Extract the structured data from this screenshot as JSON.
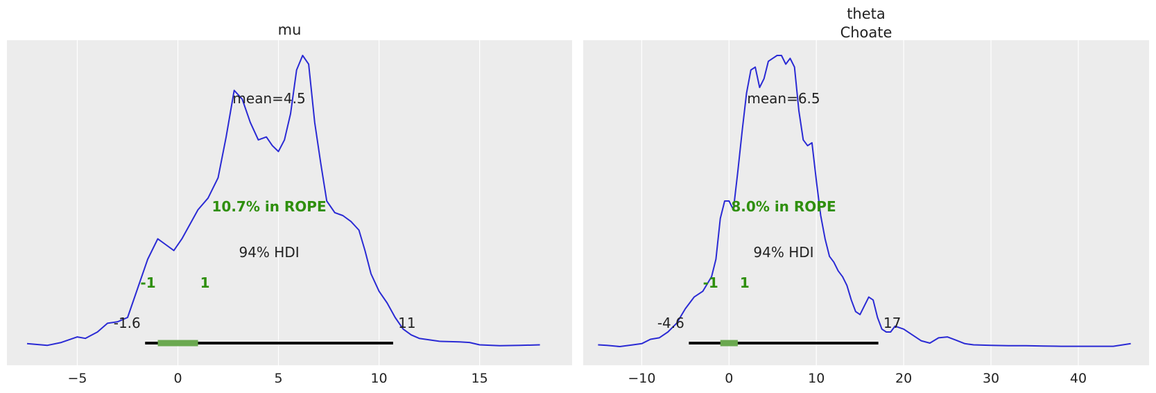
{
  "chart_data": [
    {
      "type": "area",
      "title": "mu",
      "xlabel": "",
      "ylabel": "",
      "xlim": [
        -8.5,
        19.6
      ],
      "xticks": [
        -5,
        0,
        5,
        10,
        15
      ],
      "xtick_labels": [
        "−5",
        "0",
        "5",
        "10",
        "15"
      ],
      "grid": true,
      "kde": {
        "x": [
          -7.5,
          -6.5,
          -5.8,
          -5.0,
          -4.6,
          -4.0,
          -3.5,
          -3.0,
          -2.5,
          -2.0,
          -1.5,
          -1.0,
          -0.6,
          -0.2,
          0.2,
          0.6,
          1.0,
          1.5,
          2.0,
          2.4,
          2.8,
          3.2,
          3.6,
          4.0,
          4.4,
          4.7,
          5.0,
          5.3,
          5.6,
          5.9,
          6.2,
          6.5,
          6.8,
          7.1,
          7.4,
          7.8,
          8.2,
          8.6,
          9.0,
          9.3,
          9.6,
          10.0,
          10.4,
          10.8,
          11.2,
          11.6,
          12.0,
          13.0,
          14.0,
          14.5,
          15.0,
          16.0,
          17.0,
          18.0
        ],
        "density": [
          0.01,
          0.004,
          0.014,
          0.033,
          0.028,
          0.05,
          0.08,
          0.085,
          0.1,
          0.2,
          0.3,
          0.37,
          0.35,
          0.33,
          0.37,
          0.42,
          0.47,
          0.51,
          0.58,
          0.72,
          0.88,
          0.85,
          0.77,
          0.71,
          0.72,
          0.69,
          0.67,
          0.71,
          0.8,
          0.95,
          1.0,
          0.97,
          0.77,
          0.63,
          0.5,
          0.46,
          0.45,
          0.43,
          0.4,
          0.33,
          0.25,
          0.19,
          0.15,
          0.1,
          0.06,
          0.04,
          0.028,
          0.018,
          0.016,
          0.014,
          0.006,
          0.003,
          0.004,
          0.006
        ]
      },
      "point_estimate_label": "mean=4.5",
      "hdi_label": "94% HDI",
      "hdi": [
        -1.63,
        10.7
      ],
      "hdi_low_label": "-1.6",
      "hdi_high_label": "11",
      "rope": [
        -1,
        1
      ],
      "rope_low_label": "-1",
      "rope_high_label": "1",
      "rope_label": "10.7% in ROPE"
    },
    {
      "type": "area",
      "title": "theta\nChoate",
      "xlabel": "",
      "ylabel": "",
      "xlim": [
        -16.7,
        48.1
      ],
      "xticks": [
        -10,
        0,
        10,
        20,
        30,
        40
      ],
      "xtick_labels": [
        "−10",
        "0",
        "10",
        "20",
        "30",
        "40"
      ],
      "grid": true,
      "kde": {
        "x": [
          -15.0,
          -14.0,
          -12.5,
          -11.0,
          -10.0,
          -9.0,
          -8.0,
          -7.0,
          -6.0,
          -5.0,
          -4.0,
          -3.0,
          -2.0,
          -1.5,
          -1.0,
          -0.5,
          0.0,
          0.5,
          1.0,
          1.5,
          2.0,
          2.5,
          3.0,
          3.5,
          4.0,
          4.5,
          5.0,
          5.5,
          6.0,
          6.5,
          7.0,
          7.5,
          8.0,
          8.5,
          9.0,
          9.5,
          10.0,
          10.5,
          11.0,
          11.5,
          12.0,
          12.5,
          13.0,
          13.5,
          14.0,
          14.5,
          15.0,
          15.5,
          16.0,
          16.5,
          17.0,
          17.5,
          18.0,
          18.5,
          19.0,
          20.0,
          21.0,
          22.0,
          23.0,
          24.0,
          25.0,
          26.0,
          27.0,
          28.0,
          30.0,
          32.0,
          34.0,
          36.0,
          38.0,
          40.0,
          42.0,
          44.0,
          46.0
        ],
        "density": [
          0.006,
          0.004,
          0.0,
          0.006,
          0.01,
          0.025,
          0.03,
          0.05,
          0.08,
          0.13,
          0.17,
          0.19,
          0.24,
          0.3,
          0.44,
          0.5,
          0.5,
          0.47,
          0.6,
          0.74,
          0.87,
          0.95,
          0.96,
          0.89,
          0.92,
          0.98,
          0.99,
          1.0,
          1.0,
          0.97,
          0.99,
          0.96,
          0.81,
          0.71,
          0.69,
          0.7,
          0.57,
          0.45,
          0.37,
          0.31,
          0.29,
          0.26,
          0.24,
          0.21,
          0.16,
          0.12,
          0.11,
          0.14,
          0.17,
          0.16,
          0.1,
          0.06,
          0.05,
          0.05,
          0.07,
          0.06,
          0.04,
          0.02,
          0.012,
          0.03,
          0.033,
          0.022,
          0.01,
          0.006,
          0.004,
          0.003,
          0.003,
          0.002,
          0.001,
          0.001,
          0.001,
          0.001,
          0.01
        ]
      },
      "point_estimate_label": "mean=6.5",
      "hdi_label": "94% HDI",
      "hdi": [
        -4.6,
        17.1
      ],
      "hdi_low_label": "-4.6",
      "hdi_high_label": "17",
      "rope": [
        -1,
        1
      ],
      "rope_low_label": "-1",
      "rope_high_label": "1",
      "rope_label": "8.0% in ROPE"
    }
  ],
  "colors": {
    "background": "#ececec",
    "grid": "#ffffff",
    "kde_line": "#2a2ad4",
    "hdi_line": "#000000",
    "rope_bar": "#6aa84f",
    "rope_text": "#2f8f0e",
    "text": "#222222"
  }
}
